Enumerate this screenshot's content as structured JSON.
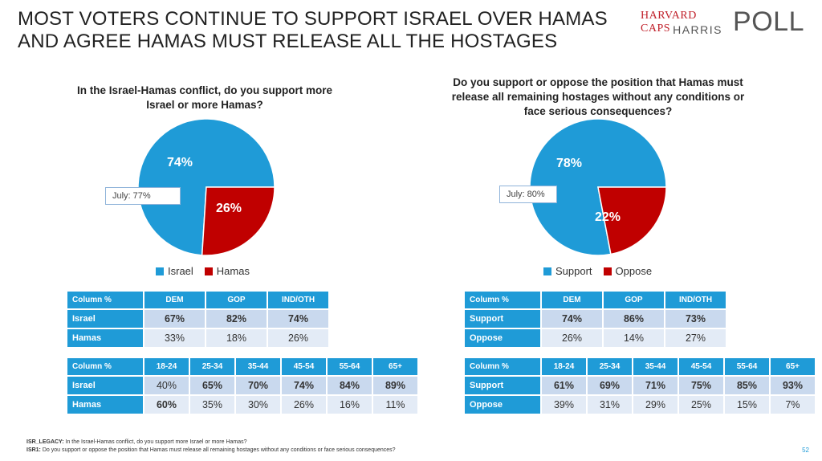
{
  "title": "MOST VOTERS CONTINUE TO SUPPORT ISRAEL OVER HAMAS AND AGREE HAMAS MUST RELEASE ALL THE HOSTAGES",
  "logo": {
    "line1": "HARVARD CAPS",
    "line2": "HARRIS",
    "poll": "POLL"
  },
  "colors": {
    "blue": "#1f9bd7",
    "red": "#c00000"
  },
  "chart_data": [
    {
      "type": "pie",
      "title": "In the Israel-Hamas conflict, do you support more Israel or more Hamas?",
      "categories": [
        "Israel",
        "Hamas"
      ],
      "values": [
        74,
        26
      ],
      "labels": [
        "74%",
        "26%"
      ],
      "colors": [
        "#1f9bd7",
        "#c00000"
      ],
      "annotation": "July: 77%",
      "legend": "bottom"
    },
    {
      "type": "pie",
      "title": "Do you support or oppose the position that Hamas must release all remaining hostages without any conditions or face serious consequences?",
      "categories": [
        "Support",
        "Oppose"
      ],
      "values": [
        78,
        22
      ],
      "labels": [
        "78%",
        "22%"
      ],
      "colors": [
        "#1f9bd7",
        "#c00000"
      ],
      "annotation": "July: 80%",
      "legend": "bottom"
    },
    {
      "type": "table",
      "headers": [
        "Column %",
        "DEM",
        "GOP",
        "IND/OTH"
      ],
      "rows": [
        {
          "label": "Israel",
          "values": [
            "67%",
            "82%",
            "74%"
          ]
        },
        {
          "label": "Hamas",
          "values": [
            "33%",
            "18%",
            "26%"
          ]
        }
      ]
    },
    {
      "type": "table",
      "headers": [
        "Column %",
        "18-24",
        "25-34",
        "35-44",
        "45-54",
        "55-64",
        "65+"
      ],
      "rows": [
        {
          "label": "Israel",
          "values": [
            "40%",
            "65%",
            "70%",
            "74%",
            "84%",
            "89%"
          ]
        },
        {
          "label": "Hamas",
          "values": [
            "60%",
            "35%",
            "30%",
            "26%",
            "16%",
            "11%"
          ]
        }
      ]
    },
    {
      "type": "table",
      "headers": [
        "Column %",
        "DEM",
        "GOP",
        "IND/OTH"
      ],
      "rows": [
        {
          "label": "Support",
          "values": [
            "74%",
            "86%",
            "73%"
          ]
        },
        {
          "label": "Oppose",
          "values": [
            "26%",
            "14%",
            "27%"
          ]
        }
      ]
    },
    {
      "type": "table",
      "headers": [
        "Column %",
        "18-24",
        "25-34",
        "35-44",
        "45-54",
        "55-64",
        "65+"
      ],
      "rows": [
        {
          "label": "Support",
          "values": [
            "61%",
            "69%",
            "71%",
            "75%",
            "85%",
            "93%"
          ]
        },
        {
          "label": "Oppose",
          "values": [
            "39%",
            "31%",
            "29%",
            "25%",
            "15%",
            "7%"
          ]
        }
      ]
    }
  ],
  "footnotes": [
    {
      "code": "ISR_LEGACY:",
      "text": "In the Israel-Hamas conflict, do you support more Israel or more Hamas?"
    },
    {
      "code": "ISR1:",
      "text": "Do you support or oppose the position that Hamas must release all remaining hostages without any conditions or face serious consequences?"
    }
  ],
  "page_number": "52"
}
